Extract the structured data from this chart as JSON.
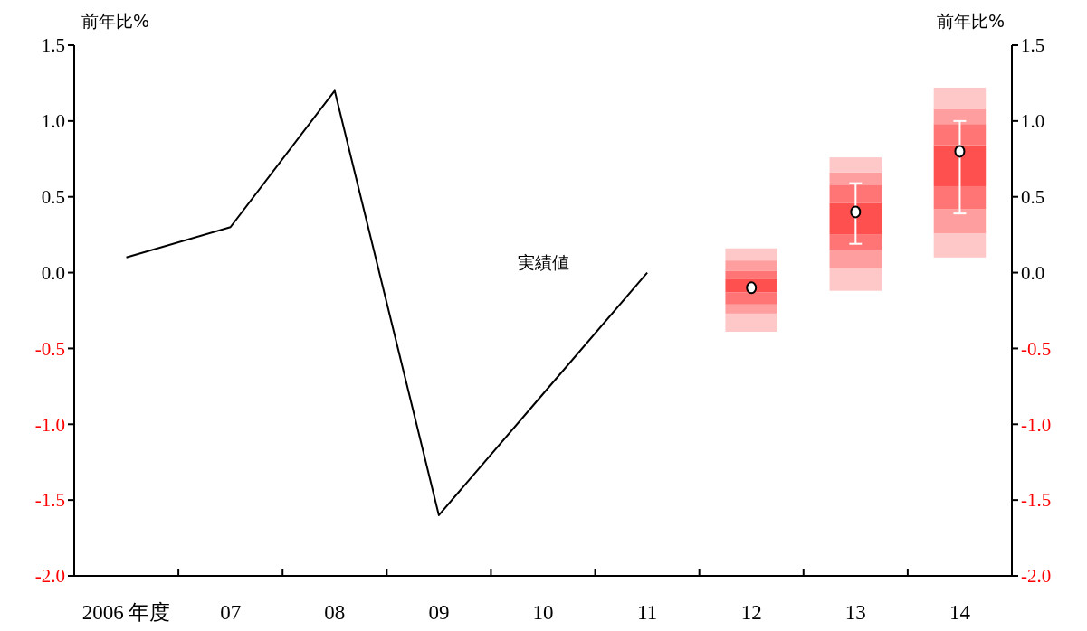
{
  "chart_data": {
    "type": "bar",
    "categories": [
      "2006 年度",
      "07",
      "08",
      "09",
      "10",
      "11",
      "12",
      "13",
      "14"
    ],
    "ylabel": "前年比%",
    "y2label": "前年比%",
    "ylim": [
      -2.0,
      1.5
    ],
    "yticks": [
      {
        "value": -2,
        "label": "-2.0"
      },
      -1.5,
      {
        "value": -1,
        "label": "-1.0"
      },
      -0.5,
      {
        "value": 0,
        "label": "0.0"
      },
      0.5,
      {
        "value": 1,
        "label": "1.0"
      },
      1.5
    ],
    "y2lim": [
      -2.0,
      1.5
    ],
    "y2ticks": [
      {
        "value": -2,
        "label": "-2.0"
      },
      -1.5,
      {
        "value": -1,
        "label": "-1.0"
      },
      -0.5,
      {
        "value": 0,
        "label": "0.0"
      },
      0.5,
      {
        "value": 1,
        "label": "1.0"
      },
      1.5
    ],
    "grid": false,
    "series": [
      {
        "color": "#ffc8c8",
        "base": [
          null,
          null,
          null,
          null,
          null,
          null,
          -0.39,
          -0.12,
          0.1
        ],
        "values": [
          null,
          null,
          null,
          null,
          null,
          null,
          0.12,
          0.15,
          0.16
        ]
      },
      {
        "color": "#ff9e9e",
        "base": [
          null,
          null,
          null,
          null,
          null,
          null,
          -0.27,
          0.03,
          0.26
        ],
        "values": [
          null,
          null,
          null,
          null,
          null,
          null,
          0.06,
          0.12,
          0.16
        ]
      },
      {
        "color": "#ff7575",
        "base": [
          null,
          null,
          null,
          null,
          null,
          null,
          -0.21,
          0.15,
          0.42
        ],
        "values": [
          null,
          null,
          null,
          null,
          null,
          null,
          0.08,
          0.1,
          0.15
        ]
      },
      {
        "color": "#ff5050",
        "base": [
          null,
          null,
          null,
          null,
          null,
          null,
          -0.13,
          0.25,
          0.57
        ],
        "values": [
          null,
          null,
          null,
          null,
          null,
          null,
          0.09,
          0.21,
          0.27
        ]
      },
      {
        "color": "#ff7575",
        "base": [
          null,
          null,
          null,
          null,
          null,
          null,
          -0.04,
          0.46,
          0.84
        ],
        "values": [
          null,
          null,
          null,
          null,
          null,
          null,
          0.05,
          0.12,
          0.14
        ]
      },
      {
        "color": "#ff9e9e",
        "base": [
          null,
          null,
          null,
          null,
          null,
          null,
          0.01,
          0.58,
          0.98
        ],
        "values": [
          null,
          null,
          null,
          null,
          null,
          null,
          0.07,
          0.08,
          0.1
        ]
      },
      {
        "color": "#ffc8c8",
        "base": [
          null,
          null,
          null,
          null,
          null,
          null,
          0.08,
          0.66,
          1.08
        ],
        "values": [
          null,
          null,
          null,
          null,
          null,
          null,
          0.08,
          0.1,
          0.14
        ]
      },
      {
        "type": "line",
        "color": "#000000",
        "marker": "none",
        "line_style": "solid",
        "values": [
          0.1,
          0.3,
          1.2,
          -1.6,
          -0.8,
          0.0,
          null,
          null,
          null
        ]
      },
      {
        "type": "scatter",
        "color": "#ffffff",
        "marker": "circle",
        "x": [
          "12",
          "13",
          "14"
        ],
        "values": [
          -0.1,
          0.4,
          0.8
        ],
        "errors": [
          null,
          [
            0.19,
            0.59
          ],
          [
            0.39,
            1.0
          ]
        ]
      }
    ],
    "annotations": [
      "実績値"
    ]
  }
}
